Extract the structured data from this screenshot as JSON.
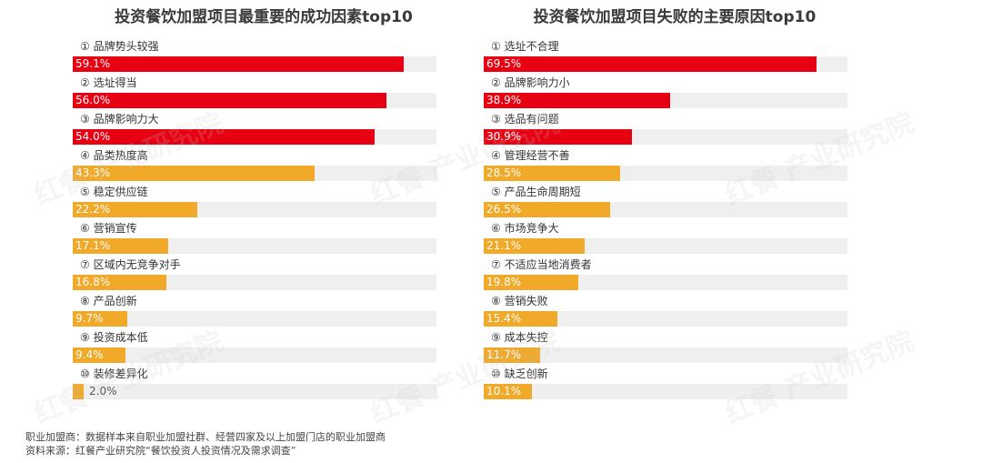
{
  "left_title": "投资餐饮加盟项目最重要的成功因素top10",
  "right_title": "投资餐饮加盟项目失败的主要原因top10",
  "footnotes": {
    "line1": "职业加盟商：数据样本来自职业加盟社群、经营四家及以上加盟门店的职业加盟商",
    "line2": "资料来源：红餐产业研究院“餐饮投资人投资情况及需求调查”"
  },
  "watermark": "红餐 产业研究院",
  "colors": {
    "red": "#e60012",
    "orange": "#f0a928",
    "track": "#efefef"
  },
  "chart_data": [
    {
      "type": "bar",
      "orientation": "horizontal",
      "title": "投资餐饮加盟项目最重要的成功因素top10",
      "categories": [
        "① 品牌势头较强",
        "② 选址得当",
        "③ 品牌影响力大",
        "④ 品类热度高",
        "⑤ 稳定供应链",
        "⑥ 营销宣传",
        "⑦ 区域内无竞争对手",
        "⑧ 产品创新",
        "⑨ 投资成本低",
        "⑩ 装修差异化"
      ],
      "values": [
        59.1,
        56.0,
        54.0,
        43.3,
        22.2,
        17.1,
        16.8,
        9.7,
        9.4,
        2.0
      ],
      "value_labels": [
        "59.1%",
        "56.0%",
        "54.0%",
        "43.3%",
        "22.2%",
        "17.1%",
        "16.8%",
        "9.7%",
        "9.4%",
        "2.0%"
      ],
      "bar_colors": [
        "#e60012",
        "#e60012",
        "#e60012",
        "#f0a928",
        "#f0a928",
        "#f0a928",
        "#f0a928",
        "#f0a928",
        "#f0a928",
        "#f0a928"
      ],
      "xlim": [
        0,
        65
      ]
    },
    {
      "type": "bar",
      "orientation": "horizontal",
      "title": "投资餐饮加盟项目失败的主要原因top10",
      "categories": [
        "① 选址不合理",
        "② 品牌影响力小",
        "③ 选品有问题",
        "④ 管理经营不善",
        "⑤ 产品生命周期短",
        "⑥ 市场竞争大",
        "⑦ 不适应当地消费者",
        "⑧ 营销失败",
        "⑨ 成本失控",
        "⑩ 缺乏创新"
      ],
      "values": [
        69.5,
        38.9,
        30.9,
        28.5,
        26.5,
        21.1,
        19.8,
        15.4,
        11.7,
        10.1
      ],
      "value_labels": [
        "69.5%",
        "38.9%",
        "30.9%",
        "28.5%",
        "26.5%",
        "21.1%",
        "19.8%",
        "15.4%",
        "11.7%",
        "10.1%"
      ],
      "bar_colors": [
        "#e60012",
        "#e60012",
        "#e60012",
        "#f0a928",
        "#f0a928",
        "#f0a928",
        "#f0a928",
        "#f0a928",
        "#f0a928",
        "#f0a928"
      ],
      "xlim": [
        0,
        76
      ]
    }
  ]
}
